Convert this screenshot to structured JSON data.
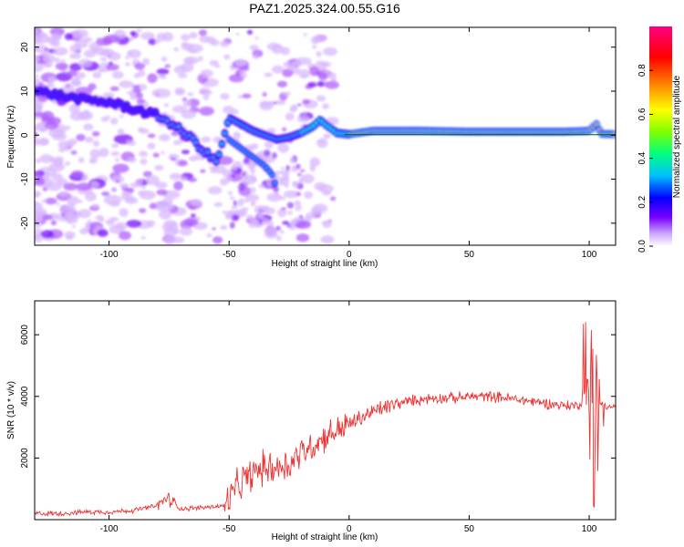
{
  "chart_data": [
    {
      "type": "heatmap",
      "title": "PAZ1.2025.324.00.55.G16",
      "xlabel": "Height of straight line (km)",
      "ylabel": "Frequency (Hz)",
      "xlim": [
        -131,
        111
      ],
      "ylim": [
        -25,
        24.5
      ],
      "xticks": [
        -100,
        -50,
        0,
        50,
        100
      ],
      "yticks": [
        -20,
        -10,
        0,
        10,
        20
      ],
      "xtick_labels": [
        "-100",
        "-50",
        "0",
        "50",
        "100"
      ],
      "ytick_labels": [
        "-20",
        "-10",
        "0",
        "10",
        "20"
      ],
      "colorbar": {
        "label": "Normalized spectral amplitude",
        "range": [
          0,
          1
        ],
        "ticks": [
          0.0,
          0.2,
          0.4,
          0.6,
          0.8
        ],
        "tick_labels": [
          "0.0",
          "0.2",
          "0.4",
          "0.6",
          "0.8"
        ],
        "colors": [
          "#ffffff",
          "#c8a0ff",
          "#7a00ff",
          "#0000ff",
          "#00c0ff",
          "#00ff80",
          "#80ff00",
          "#ffff00",
          "#ff8000",
          "#ff0000",
          "#ff0080"
        ]
      },
      "ridge_line": {
        "x": [
          -131,
          -120,
          -110,
          -100,
          -90,
          -80,
          -75,
          -70,
          -65,
          -60,
          -55,
          -50,
          -45,
          -40,
          -35,
          -30,
          -25,
          -20,
          -15,
          -12,
          -10,
          -5,
          0,
          5,
          10,
          20,
          30,
          40,
          50,
          60,
          70,
          80,
          90,
          100,
          103,
          105,
          111
        ],
        "y": [
          10,
          9,
          8,
          7.5,
          6,
          4.5,
          3,
          1,
          -1,
          -4,
          -6,
          4,
          2.5,
          1,
          0,
          -1,
          -0.5,
          0.5,
          2,
          3.5,
          2.5,
          0.5,
          0.2,
          0.6,
          1,
          1,
          1,
          0.9,
          0.8,
          0.8,
          0.8,
          0.8,
          0.8,
          1,
          2.5,
          0.3,
          0.2
        ]
      },
      "secondary_ridge": {
        "x": [
          -50,
          -45,
          -40,
          -35,
          -32,
          -30
        ],
        "y": [
          -1,
          -3,
          -5,
          -7,
          -9,
          -12
        ]
      }
    },
    {
      "type": "line",
      "xlabel": "Height of straight line (km)",
      "ylabel": "SNR (10 * v/v)",
      "xlim": [
        -131,
        111
      ],
      "ylim": [
        0,
        7100
      ],
      "xticks": [
        -100,
        -50,
        0,
        50,
        100
      ],
      "yticks": [
        2000,
        4000,
        6000
      ],
      "xtick_labels": [
        "-100",
        "-50",
        "0",
        "50",
        "100"
      ],
      "ytick_labels": [
        "2000",
        "4000",
        "6000"
      ],
      "series": [
        {
          "name": "SNR",
          "color": "#ee3333",
          "x": [
            -131,
            -120,
            -110,
            -100,
            -90,
            -80,
            -76,
            -70,
            -60,
            -52,
            -48,
            -45,
            -40,
            -35,
            -30,
            -25,
            -20,
            -15,
            -10,
            -5,
            0,
            5,
            10,
            15,
            20,
            25,
            30,
            35,
            40,
            45,
            50,
            55,
            60,
            65,
            70,
            75,
            80,
            85,
            90,
            95,
            100,
            101,
            102,
            103,
            104,
            106,
            108,
            111
          ],
          "y": [
            200,
            200,
            250,
            250,
            300,
            450,
            700,
            350,
            400,
            450,
            900,
            1200,
            1500,
            1700,
            1700,
            1800,
            2200,
            2400,
            2700,
            2900,
            3100,
            3300,
            3500,
            3650,
            3750,
            3850,
            3900,
            3950,
            3950,
            3950,
            4000,
            4000,
            4000,
            3950,
            3900,
            3850,
            3800,
            3750,
            3700,
            3700,
            4000,
            5500,
            600,
            4800,
            3600,
            3700,
            3650,
            3650
          ]
        }
      ]
    }
  ]
}
